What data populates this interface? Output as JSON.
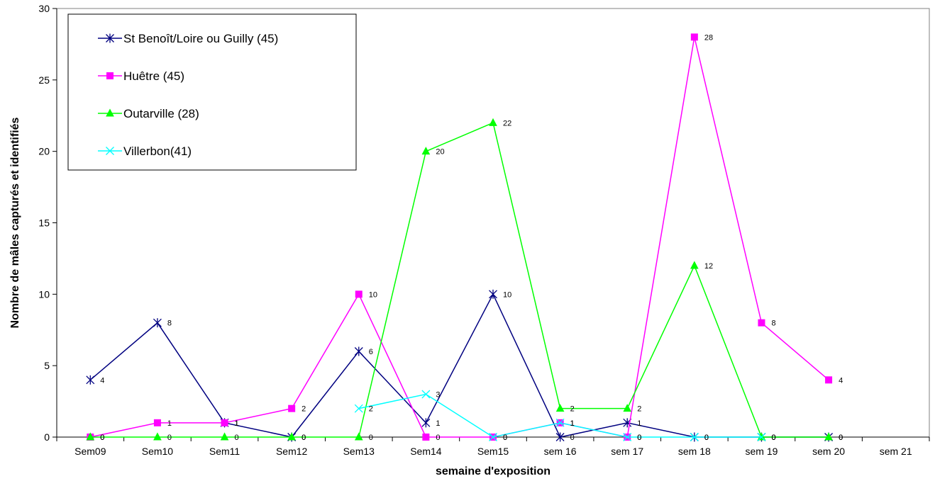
{
  "chart_data": {
    "type": "line",
    "categories": [
      "Sem09",
      "Sem10",
      "Sem11",
      "Sem12",
      "Sem13",
      "Sem14",
      "Sem15",
      "sem 16",
      "sem 17",
      "sem 18",
      "sem 19",
      "sem 20",
      "sem 21"
    ],
    "xlabel": "semaine d'exposition",
    "ylabel": "Nombre de mâles capturés et identifiés",
    "ylim": [
      0,
      30
    ],
    "yticks": [
      0,
      5,
      10,
      15,
      20,
      25,
      30
    ],
    "grid": false,
    "legend_position": "top-left",
    "series": [
      {
        "name": "St Benoît/Loire ou Guilly (45)",
        "color": "#000080",
        "marker": "star",
        "values": [
          4,
          8,
          1,
          0,
          6,
          1,
          10,
          0,
          1,
          0,
          0,
          0,
          null
        ]
      },
      {
        "name": "Huêtre (45)",
        "color": "#FF00FF",
        "marker": "square",
        "values": [
          0,
          1,
          1,
          2,
          10,
          0,
          0,
          1,
          0,
          28,
          8,
          4,
          null
        ]
      },
      {
        "name": "Outarville (28)",
        "color": "#00FF00",
        "marker": "triangle",
        "values": [
          0,
          0,
          0,
          0,
          0,
          20,
          22,
          2,
          2,
          12,
          0,
          0,
          null
        ]
      },
      {
        "name": "Villerbon(41)",
        "color": "#00FFFF",
        "marker": "x",
        "values": [
          null,
          null,
          null,
          null,
          2,
          3,
          0,
          1,
          0,
          0,
          0,
          null,
          null
        ]
      }
    ]
  }
}
